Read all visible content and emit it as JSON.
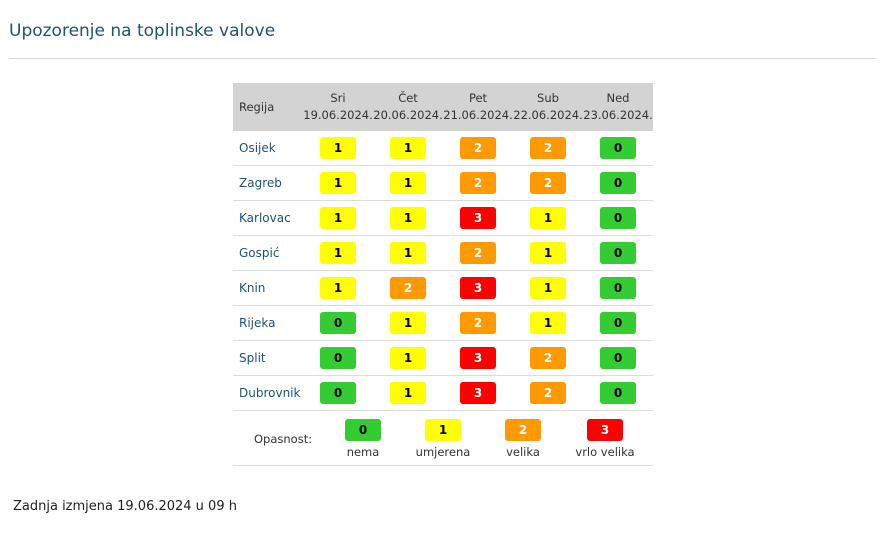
{
  "page": {
    "title": "Upozorenje na toplinske valove",
    "footer": "Zadnja izmjena 19.06.2024 u 09 h"
  },
  "table": {
    "region_header": "Regija",
    "days": [
      {
        "day": "Sri",
        "date": "19.06.2024."
      },
      {
        "day": "Čet",
        "date": "20.06.2024."
      },
      {
        "day": "Pet",
        "date": "21.06.2024."
      },
      {
        "day": "Sub",
        "date": "22.06.2024."
      },
      {
        "day": "Ned",
        "date": "23.06.2024."
      }
    ],
    "rows": [
      {
        "region": "Osijek",
        "levels": [
          1,
          1,
          2,
          2,
          0
        ]
      },
      {
        "region": "Zagreb",
        "levels": [
          1,
          1,
          2,
          2,
          0
        ]
      },
      {
        "region": "Karlovac",
        "levels": [
          1,
          1,
          3,
          1,
          0
        ]
      },
      {
        "region": "Gospić",
        "levels": [
          1,
          1,
          2,
          1,
          0
        ]
      },
      {
        "region": "Knin",
        "levels": [
          1,
          2,
          3,
          1,
          0
        ]
      },
      {
        "region": "Rijeka",
        "levels": [
          0,
          1,
          2,
          1,
          0
        ]
      },
      {
        "region": "Split",
        "levels": [
          0,
          1,
          3,
          2,
          0
        ]
      },
      {
        "region": "Dubrovnik",
        "levels": [
          0,
          1,
          3,
          2,
          0
        ]
      }
    ]
  },
  "legend": {
    "label": "Opasnost:",
    "items": [
      {
        "level": "0",
        "text": "nema"
      },
      {
        "level": "1",
        "text": "umjerena"
      },
      {
        "level": "2",
        "text": "velika"
      },
      {
        "level": "3",
        "text": "vrlo velika"
      }
    ]
  },
  "colors": {
    "level_0": "#33cc33",
    "level_1": "#ffff00",
    "level_2": "#ff9900",
    "level_3": "#ff0000",
    "title": "#1f5473",
    "header_bg": "#d3d3d3"
  }
}
